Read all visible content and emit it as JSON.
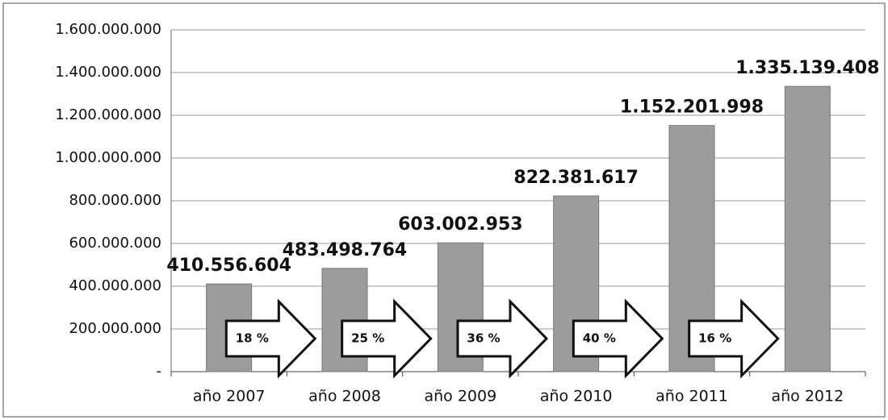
{
  "chart_data": {
    "type": "bar",
    "categories": [
      "año 2007",
      "año 2008",
      "año 2009",
      "año 2010",
      "año 2011",
      "año 2012"
    ],
    "values": [
      410556604,
      483498764,
      603002953,
      822381617,
      1152201998,
      1335139408
    ],
    "value_labels": [
      "410.556.604",
      "483.498.764",
      "603.002.953",
      "822.381.617",
      "1.152.201.998",
      "1.335.139.408"
    ],
    "color": "#9c9c9c",
    "ylim": [
      0,
      1600000000
    ],
    "yticks": [
      {
        "value": 0,
        "label": "-"
      },
      {
        "value": 200000000,
        "label": "200.000.000"
      },
      {
        "value": 400000000,
        "label": "400.000.000"
      },
      {
        "value": 600000000,
        "label": "600.000.000"
      },
      {
        "value": 800000000,
        "label": "800.000.000"
      },
      {
        "value": 1000000000,
        "label": "1.000.000.000"
      },
      {
        "value": 1200000000,
        "label": "1.200.000.000"
      },
      {
        "value": 1400000000,
        "label": "1.400.000.000"
      },
      {
        "value": 1600000000,
        "label": "1.600.000.000"
      }
    ],
    "grid": true,
    "annotations": [
      "18 %",
      "25 %",
      "36 %",
      "40 %",
      "16 %"
    ]
  }
}
